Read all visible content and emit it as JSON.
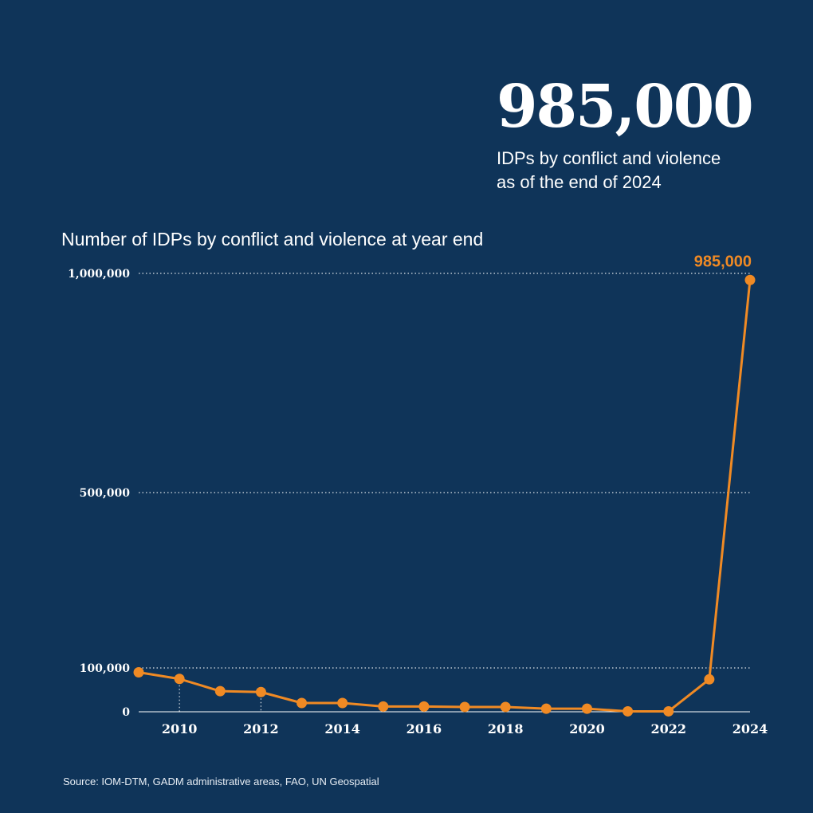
{
  "headline": {
    "value": "985,000",
    "caption": "IDPs by conflict and violence\nas of the end of 2024"
  },
  "source": "Source: IOM-DTM, GADM administrative areas, FAO, UN Geospatial",
  "colors": {
    "background": "#0f3459",
    "series": "#f08a24",
    "text": "#ffffff"
  },
  "chart_data": {
    "type": "line",
    "title": "Number of IDPs by conflict and violence at year end",
    "xlabel": "",
    "ylabel": "",
    "x": [
      2009,
      2010,
      2011,
      2012,
      2013,
      2014,
      2015,
      2016,
      2017,
      2018,
      2019,
      2020,
      2021,
      2022,
      2023,
      2024
    ],
    "series": [
      {
        "values": [
          90000,
          75000,
          47000,
          45000,
          20000,
          20000,
          12000,
          12000,
          11000,
          11000,
          7000,
          7000,
          1000,
          1000,
          74000,
          985000
        ]
      }
    ],
    "xlim": [
      2009,
      2024
    ],
    "ylim": [
      0,
      1000000
    ],
    "y_ticks": [
      {
        "value": 0,
        "label": "0"
      },
      {
        "value": 100000,
        "label": "100,000"
      },
      {
        "value": 500000,
        "label": "500,000"
      },
      {
        "value": 1000000,
        "label": "1,000,000"
      }
    ],
    "x_ticks": [
      {
        "value": 2010,
        "label": "2010"
      },
      {
        "value": 2012,
        "label": "2012"
      },
      {
        "value": 2014,
        "label": "2014"
      },
      {
        "value": 2016,
        "label": "2016"
      },
      {
        "value": 2018,
        "label": "2018"
      },
      {
        "value": 2020,
        "label": "2020"
      },
      {
        "value": 2022,
        "label": "2022"
      },
      {
        "value": 2024,
        "label": "2024"
      }
    ],
    "annotation": {
      "x": 2024,
      "label": "985,000"
    },
    "grid": true,
    "legend": "none"
  }
}
